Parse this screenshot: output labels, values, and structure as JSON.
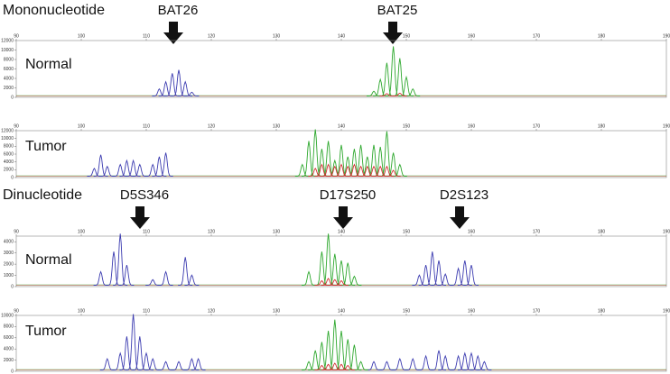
{
  "chart_data": [
    {
      "type": "electropherogram",
      "title": "Mononucleotide",
      "annotations": [
        "BAT26",
        "BAT25"
      ],
      "label": "Normal",
      "xlim": [
        90,
        190
      ],
      "xticks": [
        90,
        100,
        110,
        120,
        130,
        140,
        150,
        160,
        170,
        180,
        190
      ],
      "ylim": [
        0,
        12000
      ],
      "yticks": [
        0,
        2000,
        4000,
        6000,
        8000,
        10000,
        12000
      ],
      "series": [
        {
          "color": "#3b3bb0",
          "x": [
            112,
            113,
            114,
            115,
            116,
            117
          ],
          "values": [
            1500,
            3000,
            4800,
            5500,
            3000,
            800
          ]
        },
        {
          "color": "#2ea82e",
          "x": [
            145,
            146,
            147,
            148,
            149,
            150,
            151
          ],
          "values": [
            1000,
            3500,
            7000,
            10500,
            8000,
            4000,
            1500
          ]
        },
        {
          "color": "#d03030",
          "x": [
            147,
            149
          ],
          "values": [
            500,
            600
          ]
        }
      ]
    },
    {
      "type": "electropherogram",
      "label": "Tumor",
      "xlim": [
        90,
        190
      ],
      "xticks": [
        90,
        100,
        110,
        120,
        130,
        140,
        150,
        160,
        170,
        180,
        190
      ],
      "ylim": [
        0,
        12000
      ],
      "yticks": [
        0,
        2000,
        4000,
        6000,
        8000,
        10000,
        12000
      ],
      "series": [
        {
          "color": "#3b3bb0",
          "x": [
            102,
            103,
            104,
            106,
            107,
            108,
            109,
            111,
            112,
            113
          ],
          "values": [
            2000,
            5500,
            2500,
            3000,
            4000,
            4000,
            3000,
            3000,
            5000,
            6000
          ]
        },
        {
          "color": "#2ea82e",
          "x": [
            134,
            135,
            136,
            137,
            138,
            139,
            140,
            141,
            142,
            143,
            144,
            145,
            146,
            147,
            148,
            149
          ],
          "values": [
            3000,
            9000,
            12000,
            7000,
            9000,
            4000,
            8000,
            5000,
            7000,
            8000,
            5000,
            8000,
            7500,
            11500,
            6000,
            3000
          ]
        },
        {
          "color": "#d03030",
          "x": [
            136,
            137,
            138,
            139,
            140,
            141,
            142,
            143,
            144,
            145,
            146,
            147,
            148
          ],
          "values": [
            2000,
            3000,
            3000,
            2500,
            3000,
            2500,
            3000,
            2500,
            2500,
            2500,
            2500,
            2500,
            1500
          ]
        }
      ]
    },
    {
      "type": "electropherogram",
      "title": "Dinucleotide",
      "annotations": [
        "D5S346",
        "D17S250",
        "D2S123"
      ],
      "label": "Normal",
      "xlim": [
        90,
        190
      ],
      "xticks": [
        90,
        100,
        110,
        120,
        130,
        140,
        150,
        160,
        170,
        180,
        190
      ],
      "ylim": [
        0,
        4500
      ],
      "yticks": [
        0,
        1000,
        2000,
        3000,
        4000
      ],
      "series": [
        {
          "color": "#3b3bb0",
          "x": [
            103,
            105,
            106,
            107,
            111,
            113,
            116,
            117,
            152,
            153,
            154,
            155,
            156,
            158,
            159,
            160
          ],
          "values": [
            1200,
            3000,
            4600,
            1800,
            500,
            1200,
            2500,
            900,
            900,
            1800,
            3000,
            2200,
            1000,
            1500,
            2200,
            1800
          ]
        },
        {
          "color": "#2ea82e",
          "x": [
            135,
            137,
            138,
            139,
            140,
            141,
            142
          ],
          "values": [
            1200,
            3000,
            4600,
            2800,
            2200,
            2000,
            800
          ]
        },
        {
          "color": "#d03030",
          "x": [
            137,
            138,
            139,
            140
          ],
          "values": [
            400,
            600,
            500,
            400
          ]
        }
      ]
    },
    {
      "type": "electropherogram",
      "label": "Tumor",
      "xlim": [
        90,
        190
      ],
      "xticks": [
        90,
        100,
        110,
        120,
        130,
        140,
        150,
        160,
        170,
        180,
        190
      ],
      "ylim": [
        0,
        10000
      ],
      "yticks": [
        0,
        2000,
        4000,
        6000,
        8000,
        10000
      ],
      "series": [
        {
          "color": "#3b3bb0",
          "x": [
            104,
            106,
            107,
            108,
            109,
            110,
            111,
            113,
            115,
            117,
            118,
            145,
            147,
            149,
            151,
            153,
            155,
            156,
            158,
            159,
            160,
            161,
            162
          ],
          "values": [
            2000,
            3000,
            6000,
            10000,
            6000,
            3000,
            2000,
            1500,
            1500,
            2000,
            2000,
            1500,
            1500,
            2000,
            2000,
            2500,
            3500,
            2500,
            2500,
            3000,
            3000,
            2500,
            1500
          ]
        },
        {
          "color": "#2ea82e",
          "x": [
            135,
            136,
            137,
            138,
            139,
            140,
            141,
            142,
            143
          ],
          "values": [
            1500,
            3500,
            5000,
            7000,
            9000,
            7000,
            5500,
            4500,
            1500
          ]
        },
        {
          "color": "#d03030",
          "x": [
            137,
            138,
            139,
            140,
            141
          ],
          "values": [
            800,
            1000,
            1200,
            1000,
            800
          ]
        }
      ]
    }
  ]
}
